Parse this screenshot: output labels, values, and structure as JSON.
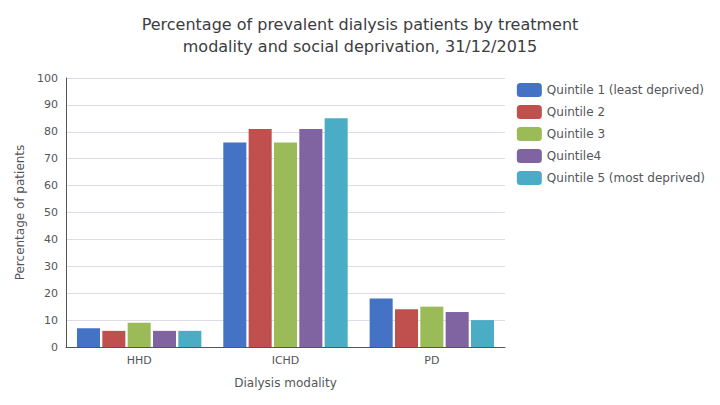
{
  "chart_data": {
    "type": "bar",
    "title": "Percentage of prevalent dialysis patients by treatment\nmodality and social deprivation, 31/12/2015",
    "xlabel": "Dialysis modality",
    "ylabel": "Percentage of patients",
    "categories": [
      "HHD",
      "ICHD",
      "PD"
    ],
    "series": [
      {
        "name": "Quintile 1 (least deprived)",
        "color": "#4472C4",
        "values": [
          7,
          76,
          18
        ]
      },
      {
        "name": "Quintile 2",
        "color": "#C0504D",
        "values": [
          6,
          81,
          14
        ]
      },
      {
        "name": "Quintile 3",
        "color": "#9BBB59",
        "values": [
          9,
          76,
          15
        ]
      },
      {
        "name": "Quintile4",
        "color": "#8064A2",
        "values": [
          6,
          81,
          13
        ]
      },
      {
        "name": "Quintile 5 (most deprived)",
        "color": "#4BACC6",
        "values": [
          6,
          85,
          10
        ]
      }
    ],
    "ylim": [
      0,
      100
    ],
    "yticks": [
      0,
      10,
      20,
      30,
      40,
      50,
      60,
      70,
      80,
      90,
      100
    ],
    "grid": true,
    "legend": "upper right"
  }
}
